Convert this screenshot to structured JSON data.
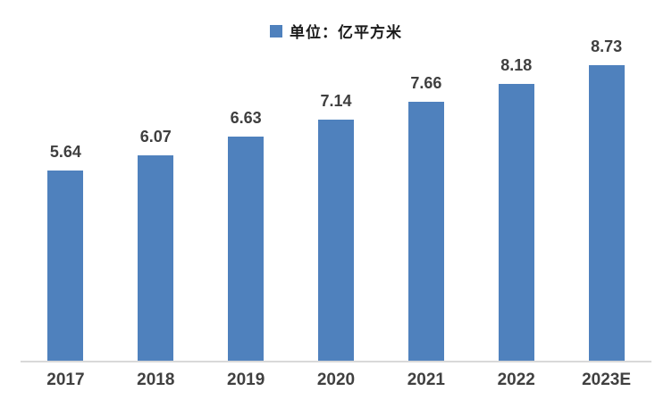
{
  "chart_data": {
    "type": "bar",
    "title": "",
    "legend": "单位：亿平方米",
    "legend_position": "top-center",
    "categories": [
      "2017",
      "2018",
      "2019",
      "2020",
      "2021",
      "2022",
      "2023E"
    ],
    "values": [
      5.64,
      6.07,
      6.63,
      7.14,
      7.66,
      8.18,
      8.73
    ],
    "xlabel": "",
    "ylabel": "",
    "ylim": [
      0,
      9
    ],
    "grid": false,
    "data_labels_shown": true,
    "bar_color": "#4F81BD",
    "value_label_color": "#3F3F3F",
    "tick_label_color": "#404040",
    "axis_line_color": "#D9D9D9",
    "background_color": "#FFFFFF"
  }
}
